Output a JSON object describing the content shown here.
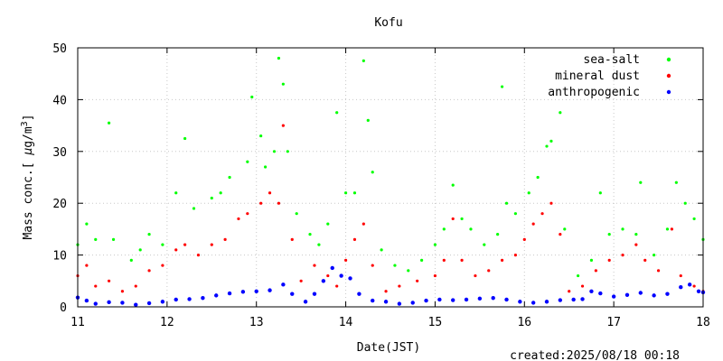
{
  "chart_data": {
    "type": "scatter",
    "title": "Kofu",
    "xlabel": "Date(JST)",
    "ylabel_main": "Mass conc.[ ",
    "ylabel_mu": "μ",
    "ylabel_unit": "g/m",
    "ylabel_exp": "3",
    "ylabel_close": "]",
    "footer": "created:2025/08/18 00:18",
    "xlim": [
      11,
      18
    ],
    "ylim": [
      0,
      50
    ],
    "x_ticks": [
      11,
      12,
      13,
      14,
      15,
      16,
      17,
      18
    ],
    "y_ticks": [
      0,
      10,
      20,
      30,
      40,
      50
    ],
    "grid": true,
    "legend_position": "top-right",
    "series": [
      {
        "name": "sea-salt",
        "color": "#00ff00",
        "points": [
          [
            11.0,
            12
          ],
          [
            11.1,
            16
          ],
          [
            11.2,
            13
          ],
          [
            11.35,
            35.5
          ],
          [
            11.4,
            13
          ],
          [
            11.6,
            9
          ],
          [
            11.7,
            11
          ],
          [
            11.8,
            14
          ],
          [
            11.95,
            12
          ],
          [
            12.1,
            22
          ],
          [
            12.2,
            32.5
          ],
          [
            12.3,
            19
          ],
          [
            12.5,
            21
          ],
          [
            12.6,
            22
          ],
          [
            12.7,
            25
          ],
          [
            12.9,
            28
          ],
          [
            12.95,
            40.5
          ],
          [
            13.05,
            33
          ],
          [
            13.1,
            27
          ],
          [
            13.2,
            30
          ],
          [
            13.25,
            48
          ],
          [
            13.3,
            43
          ],
          [
            13.35,
            30
          ],
          [
            13.45,
            18
          ],
          [
            13.6,
            14
          ],
          [
            13.7,
            12
          ],
          [
            13.8,
            16
          ],
          [
            13.9,
            37.5
          ],
          [
            14.0,
            22
          ],
          [
            14.1,
            22
          ],
          [
            14.2,
            47.5
          ],
          [
            14.25,
            36
          ],
          [
            14.3,
            26
          ],
          [
            14.4,
            11
          ],
          [
            14.55,
            8
          ],
          [
            14.7,
            7
          ],
          [
            14.85,
            9
          ],
          [
            15.0,
            12
          ],
          [
            15.1,
            15
          ],
          [
            15.2,
            23.5
          ],
          [
            15.3,
            17
          ],
          [
            15.4,
            15
          ],
          [
            15.55,
            12
          ],
          [
            15.7,
            14
          ],
          [
            15.75,
            42.5
          ],
          [
            15.8,
            20
          ],
          [
            15.9,
            18
          ],
          [
            16.05,
            22
          ],
          [
            16.15,
            25
          ],
          [
            16.25,
            31
          ],
          [
            16.3,
            32
          ],
          [
            16.4,
            37.5
          ],
          [
            16.45,
            15
          ],
          [
            16.6,
            6
          ],
          [
            16.75,
            9
          ],
          [
            16.85,
            22
          ],
          [
            16.95,
            14
          ],
          [
            17.1,
            15
          ],
          [
            17.25,
            14
          ],
          [
            17.3,
            24
          ],
          [
            17.45,
            10
          ],
          [
            17.6,
            15
          ],
          [
            17.7,
            24
          ],
          [
            17.8,
            20
          ],
          [
            17.9,
            17
          ],
          [
            18.0,
            13
          ]
        ]
      },
      {
        "name": "mineral dust",
        "color": "#ff0000",
        "points": [
          [
            11.0,
            6
          ],
          [
            11.1,
            8
          ],
          [
            11.2,
            4
          ],
          [
            11.35,
            5
          ],
          [
            11.5,
            3
          ],
          [
            11.65,
            4
          ],
          [
            11.8,
            7
          ],
          [
            11.95,
            8
          ],
          [
            12.1,
            11
          ],
          [
            12.2,
            12
          ],
          [
            12.35,
            10
          ],
          [
            12.5,
            12
          ],
          [
            12.65,
            13
          ],
          [
            12.8,
            17
          ],
          [
            12.9,
            18
          ],
          [
            13.05,
            20
          ],
          [
            13.15,
            22
          ],
          [
            13.25,
            20
          ],
          [
            13.3,
            35
          ],
          [
            13.4,
            13
          ],
          [
            13.5,
            5
          ],
          [
            13.65,
            8
          ],
          [
            13.8,
            6
          ],
          [
            13.9,
            4
          ],
          [
            14.0,
            9
          ],
          [
            14.1,
            13
          ],
          [
            14.2,
            16
          ],
          [
            14.3,
            8
          ],
          [
            14.45,
            3
          ],
          [
            14.6,
            4
          ],
          [
            14.8,
            5
          ],
          [
            15.0,
            6
          ],
          [
            15.1,
            9
          ],
          [
            15.2,
            17
          ],
          [
            15.3,
            9
          ],
          [
            15.45,
            6
          ],
          [
            15.6,
            7
          ],
          [
            15.75,
            9
          ],
          [
            15.9,
            10
          ],
          [
            16.0,
            13
          ],
          [
            16.1,
            16
          ],
          [
            16.2,
            18
          ],
          [
            16.3,
            20
          ],
          [
            16.4,
            14
          ],
          [
            16.5,
            3
          ],
          [
            16.65,
            4
          ],
          [
            16.8,
            7
          ],
          [
            16.95,
            9
          ],
          [
            17.1,
            10
          ],
          [
            17.25,
            12
          ],
          [
            17.35,
            9
          ],
          [
            17.5,
            7
          ],
          [
            17.65,
            15
          ],
          [
            17.75,
            6
          ],
          [
            17.9,
            4
          ],
          [
            18.0,
            3
          ]
        ]
      },
      {
        "name": "anthropogenic",
        "color": "#0000ff",
        "points": [
          [
            11.0,
            1.8
          ],
          [
            11.1,
            1.2
          ],
          [
            11.2,
            0.6
          ],
          [
            11.35,
            0.9
          ],
          [
            11.5,
            0.8
          ],
          [
            11.65,
            0.4
          ],
          [
            11.8,
            0.7
          ],
          [
            11.95,
            1.0
          ],
          [
            12.1,
            1.4
          ],
          [
            12.25,
            1.5
          ],
          [
            12.4,
            1.7
          ],
          [
            12.55,
            2.2
          ],
          [
            12.7,
            2.6
          ],
          [
            12.85,
            2.9
          ],
          [
            13.0,
            3.0
          ],
          [
            13.15,
            3.2
          ],
          [
            13.3,
            4.3
          ],
          [
            13.4,
            2.5
          ],
          [
            13.55,
            1.0
          ],
          [
            13.65,
            2.5
          ],
          [
            13.75,
            5.0
          ],
          [
            13.85,
            7.5
          ],
          [
            13.95,
            6.0
          ],
          [
            14.05,
            5.5
          ],
          [
            14.15,
            2.5
          ],
          [
            14.3,
            1.2
          ],
          [
            14.45,
            1.0
          ],
          [
            14.6,
            0.6
          ],
          [
            14.75,
            0.8
          ],
          [
            14.9,
            1.2
          ],
          [
            15.05,
            1.4
          ],
          [
            15.2,
            1.3
          ],
          [
            15.35,
            1.4
          ],
          [
            15.5,
            1.6
          ],
          [
            15.65,
            1.7
          ],
          [
            15.8,
            1.4
          ],
          [
            15.95,
            1.0
          ],
          [
            16.1,
            0.8
          ],
          [
            16.25,
            1.0
          ],
          [
            16.4,
            1.3
          ],
          [
            16.55,
            1.4
          ],
          [
            16.65,
            1.5
          ],
          [
            16.75,
            3.0
          ],
          [
            16.85,
            2.6
          ],
          [
            17.0,
            2.0
          ],
          [
            17.15,
            2.3
          ],
          [
            17.3,
            2.7
          ],
          [
            17.45,
            2.2
          ],
          [
            17.6,
            2.5
          ],
          [
            17.75,
            3.8
          ],
          [
            17.85,
            4.3
          ],
          [
            17.95,
            3.0
          ],
          [
            18.0,
            2.8
          ]
        ]
      }
    ]
  }
}
